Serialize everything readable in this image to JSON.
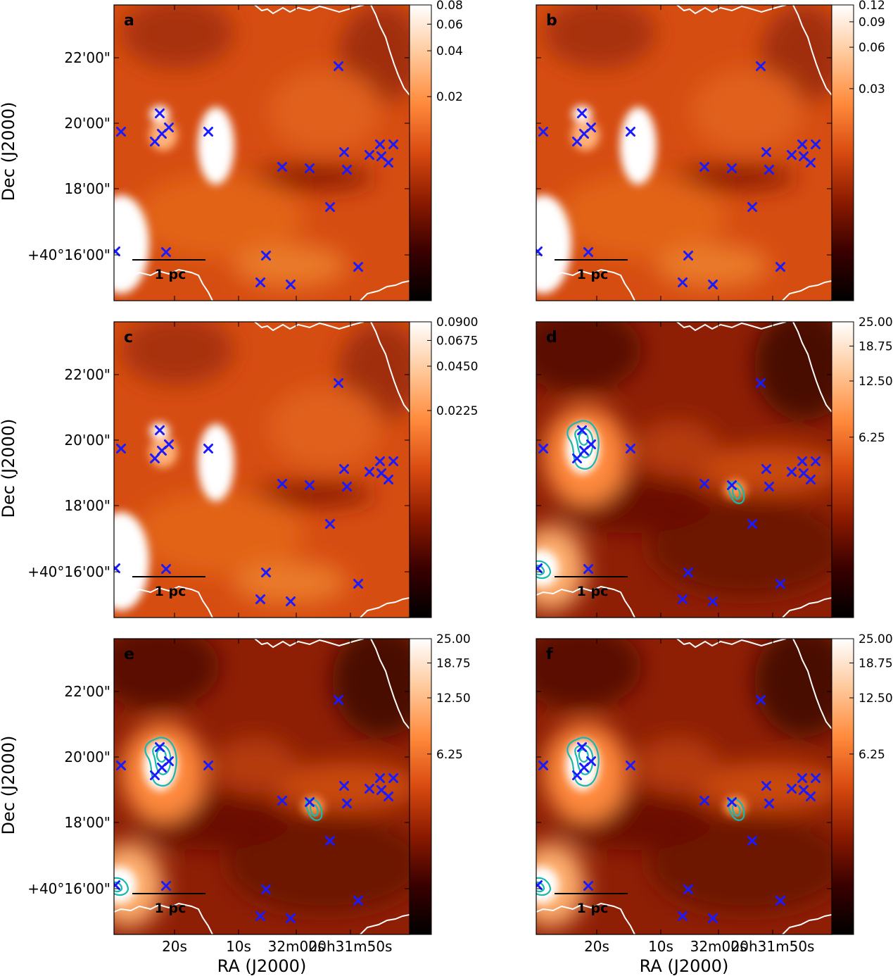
{
  "chart_data": {
    "type": "heatmap",
    "panel_letters": [
      "a",
      "b",
      "c",
      "d",
      "e",
      "f"
    ],
    "axes": {
      "xlabel": "RA (J2000)",
      "ylabel": "Dec (J2000)",
      "x_ticks": [
        "20s",
        "10s",
        "32m00s",
        "20h31m50s"
      ],
      "y_ticks": [
        "22'00\"",
        "20'00\"",
        "18'00\"",
        "+40°16'00\""
      ]
    },
    "scalebar_label": "1 pc",
    "colormap": [
      "#000000",
      "#3a0000",
      "#8b1a00",
      "#d84a10",
      "#ff8a3c",
      "#ffc89a",
      "#ffffff"
    ],
    "marker_color": "#1a1aff",
    "contour_color": "#17b8b0",
    "boundary_color": "#ffffff",
    "panels": [
      {
        "letter": "a",
        "colorbar_ticks": [
          "0.08",
          "0.06",
          "0.04",
          "0.02"
        ]
      },
      {
        "letter": "b",
        "colorbar_ticks": [
          "0.12",
          "0.09",
          "0.06",
          "0.03"
        ]
      },
      {
        "letter": "c",
        "colorbar_ticks": [
          "0.0900",
          "0.0675",
          "0.0450",
          "0.0225"
        ]
      },
      {
        "letter": "d",
        "colorbar_ticks": [
          "25.00",
          "18.75",
          "12.50",
          "6.25"
        ]
      },
      {
        "letter": "e",
        "colorbar_ticks": [
          "25.00",
          "18.75",
          "12.50",
          "6.25"
        ]
      },
      {
        "letter": "f",
        "colorbar_ticks": [
          "25.00",
          "18.75",
          "12.50",
          "6.25"
        ]
      }
    ]
  }
}
